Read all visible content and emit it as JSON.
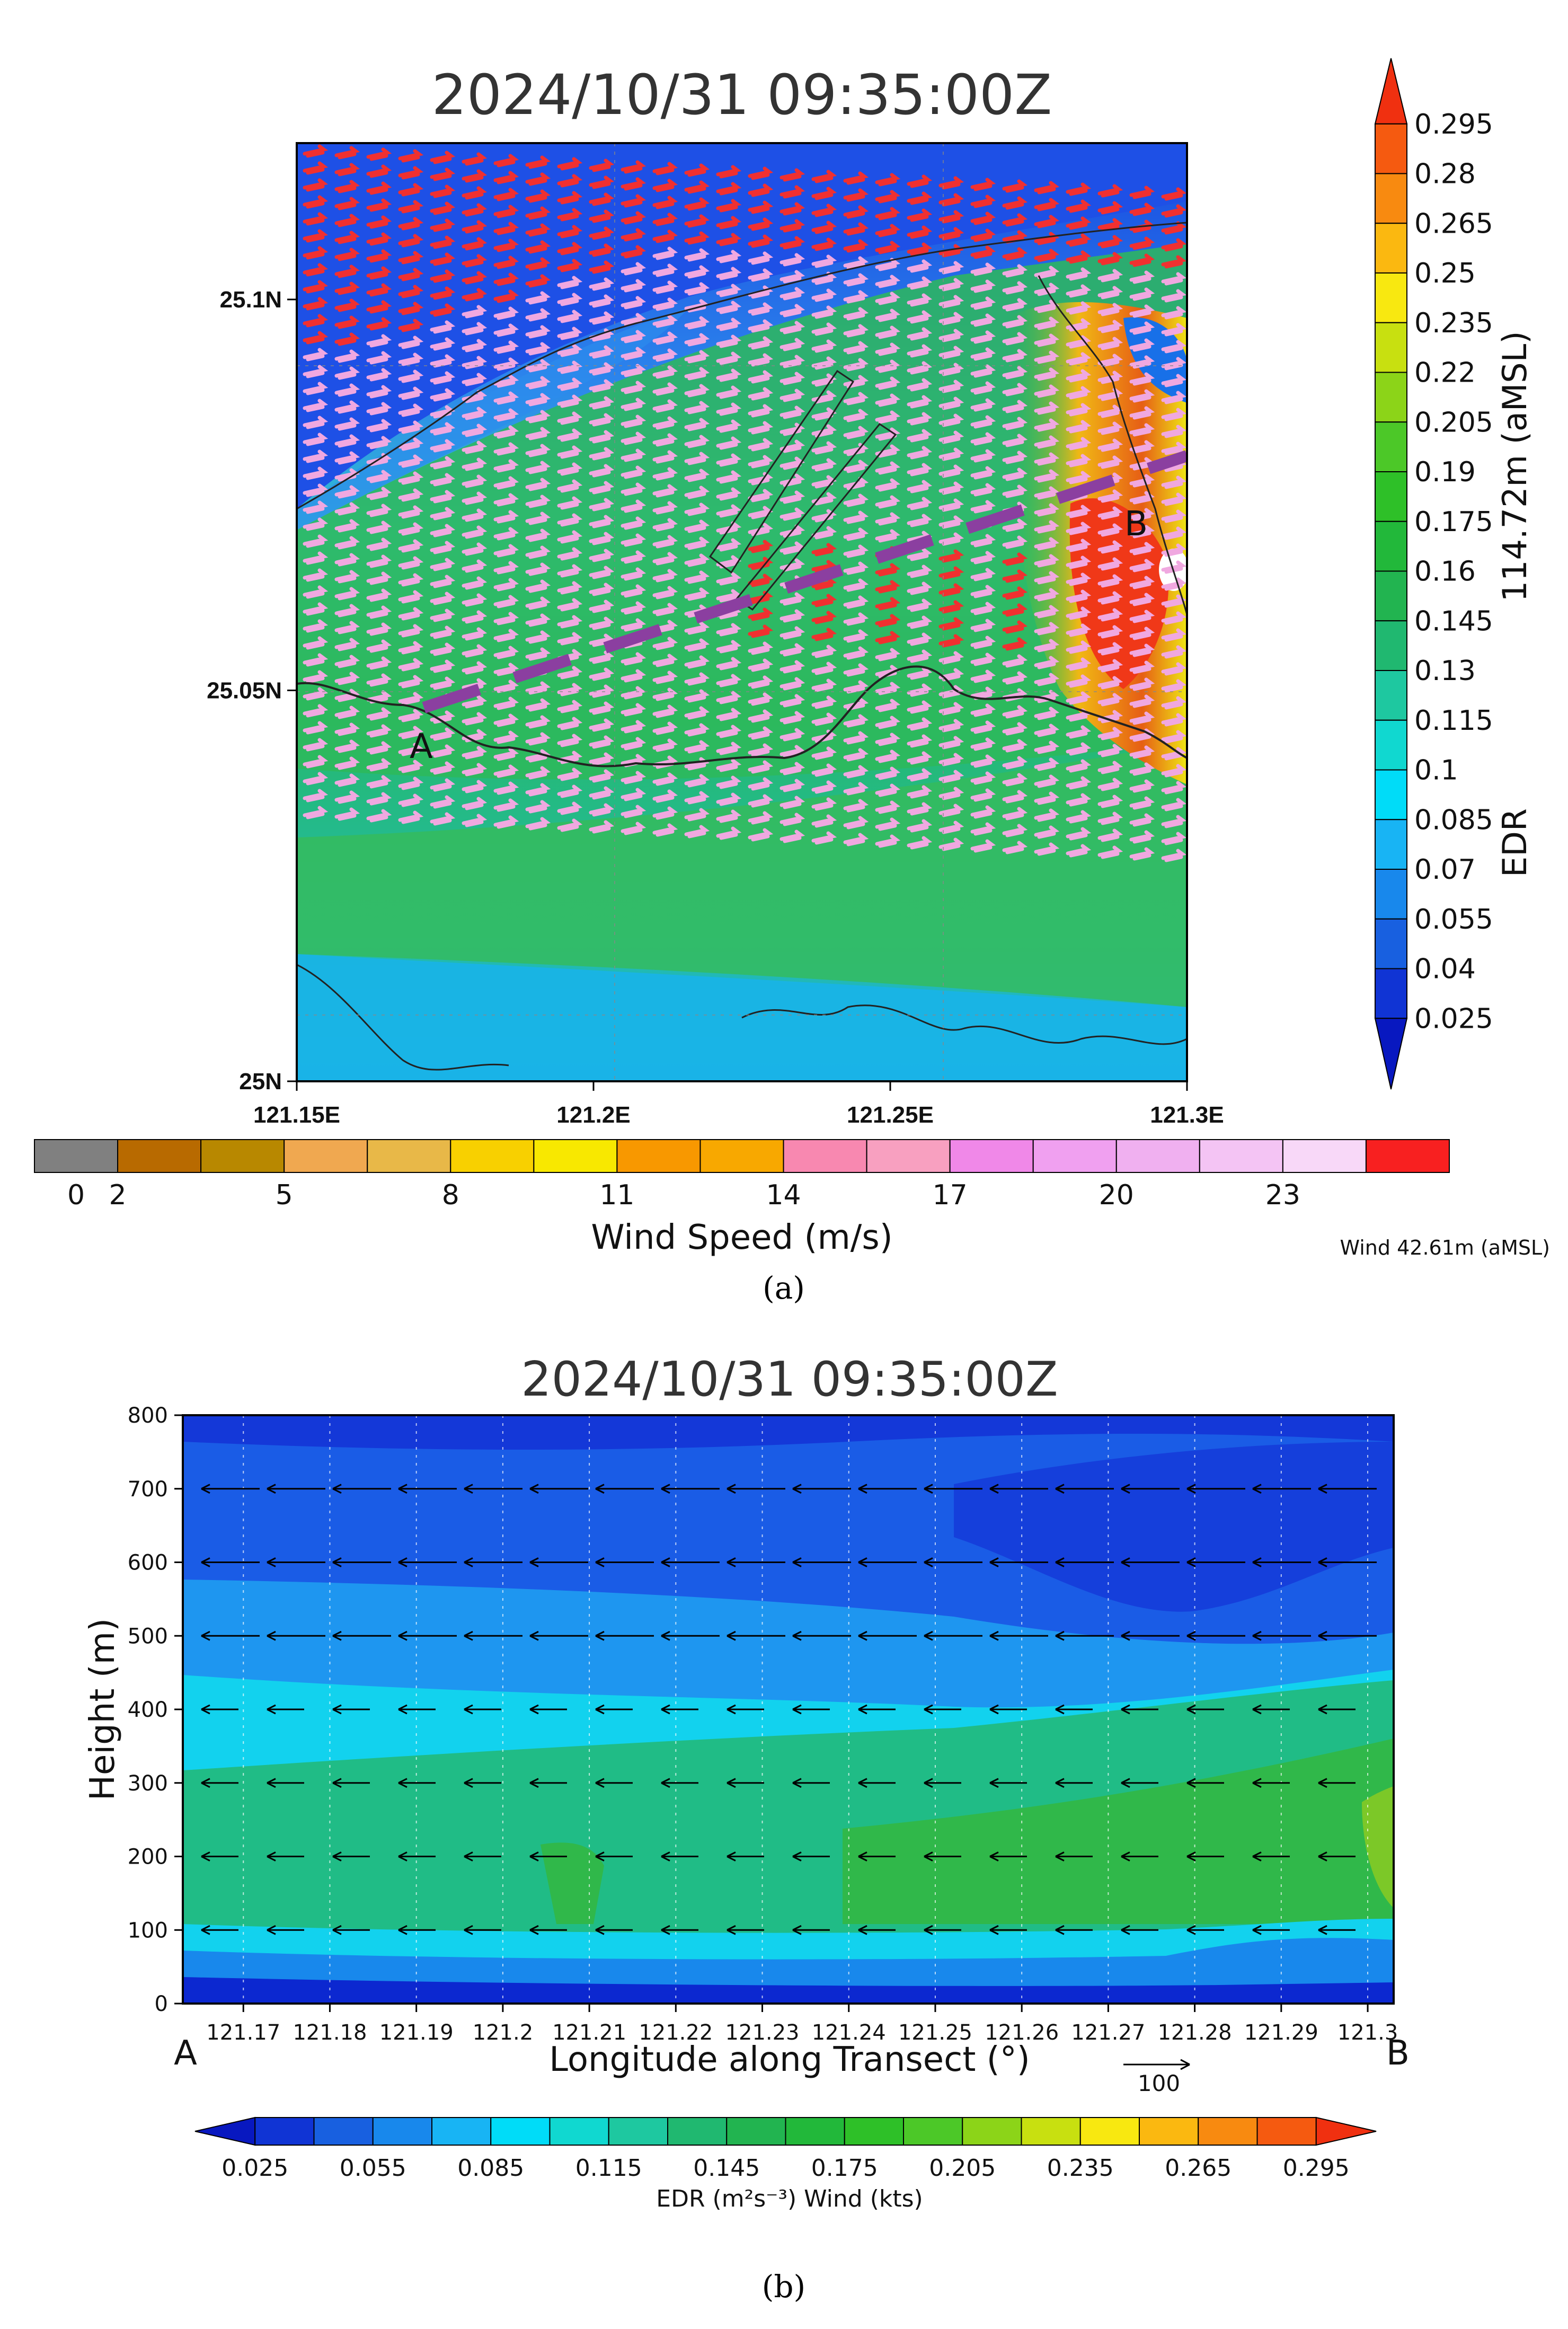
{
  "chart_data": [
    {
      "type": "heatmap",
      "panel_caption": "(a)",
      "title": "2024/10/31 09:35:00Z",
      "x_ticks": [
        "121.15E",
        "121.2E",
        "121.25E",
        "121.3E"
      ],
      "y_ticks": [
        "25N",
        "25.05N",
        "25.1N"
      ],
      "xlim": [
        121.15,
        121.3
      ],
      "ylim": [
        25.0,
        25.12
      ],
      "transect": {
        "start_label": "A",
        "end_label": "B",
        "start": [
          121.172,
          25.048
        ],
        "end": [
          121.3,
          25.088
        ],
        "color": "#8B3FA0"
      },
      "edr_colorbar": {
        "label": "EDR",
        "height_label": "114.72m (aMSL)",
        "ticks": [
          "0.295",
          "0.28",
          "0.265",
          "0.25",
          "0.235",
          "0.22",
          "0.205",
          "0.19",
          "0.175",
          "0.16",
          "0.145",
          "0.13",
          "0.115",
          "0.1",
          "0.085",
          "0.07",
          "0.055",
          "0.04",
          "0.025"
        ],
        "colors": [
          "#F03010",
          "#F55A10",
          "#F88A10",
          "#FBB810",
          "#F8E810",
          "#C8E010",
          "#8CD418",
          "#4CC828",
          "#2EC028",
          "#22B83A",
          "#22B450",
          "#20B870",
          "#1EC8A0",
          "#10D8D0",
          "#00DCF8",
          "#18B4F4",
          "#1888EC",
          "#1860E0",
          "#1034D4",
          "#0818C0"
        ]
      },
      "wind_colorbar": {
        "label": "Wind Speed (m/s)",
        "note": "Wind 42.61m (aMSL)",
        "ticks": [
          "0",
          "2",
          "5",
          "8",
          "11",
          "14",
          "17",
          "20",
          "23"
        ],
        "colors": [
          "#808080",
          "#B86A00",
          "#B88800",
          "#F0A850",
          "#E8B848",
          "#F8D000",
          "#F8E800",
          "#F89800",
          "#F8A800",
          "#F888B0",
          "#F8A0C0",
          "#F088E8",
          "#F0A0F0",
          "#F0B0F0",
          "#F4C4F4",
          "#F8D8F8",
          "#F82020"
        ]
      },
      "wind_barb_colors": {
        "strong": "#F03030",
        "moderate": "#F0A8E0"
      }
    },
    {
      "type": "heatmap",
      "panel_caption": "(b)",
      "title": "2024/10/31 09:35:00Z",
      "xlabel": "Longitude along Transect (°)",
      "ylabel": "Height (m)",
      "x_ticks": [
        "121.17",
        "121.18",
        "121.19",
        "121.2",
        "121.21",
        "121.22",
        "121.23",
        "121.24",
        "121.25",
        "121.26",
        "121.27",
        "121.28",
        "121.29",
        "121.3"
      ],
      "y_ticks": [
        "0",
        "100",
        "200",
        "300",
        "400",
        "500",
        "600",
        "700",
        "800"
      ],
      "xlim": [
        121.163,
        121.303
      ],
      "ylim": [
        0,
        800
      ],
      "start_label": "A",
      "end_label": "B",
      "reference_vector_label": "100",
      "wind_vector_heights": [
        100,
        200,
        300,
        400,
        500,
        600,
        700
      ],
      "wind_direction": "westward",
      "colorbar": {
        "label": "EDR (m²s⁻³) Wind (kts)",
        "ticks": [
          "0.025",
          "0.055",
          "0.085",
          "0.115",
          "0.145",
          "0.175",
          "0.205",
          "0.235",
          "0.265",
          "0.295"
        ],
        "colors": [
          "#0818C0",
          "#1034D4",
          "#1860E0",
          "#1888EC",
          "#18B4F4",
          "#00DCF8",
          "#10D8D0",
          "#1EC8A0",
          "#20B870",
          "#22B450",
          "#22B83A",
          "#2EC028",
          "#4CC828",
          "#8CD418",
          "#C8E010",
          "#F8E810",
          "#FBB810",
          "#F88A10",
          "#F55A10",
          "#F03010"
        ]
      },
      "field_colors": {
        "upper": "#1A5CE6",
        "upper_dark": "#1438D8",
        "mid": "#1E96F0",
        "low_mid": "#12D2EE",
        "low": "#20BC86",
        "green": "#30B84A",
        "bright": "#7CC828",
        "ground": "#0C28D0"
      }
    }
  ]
}
